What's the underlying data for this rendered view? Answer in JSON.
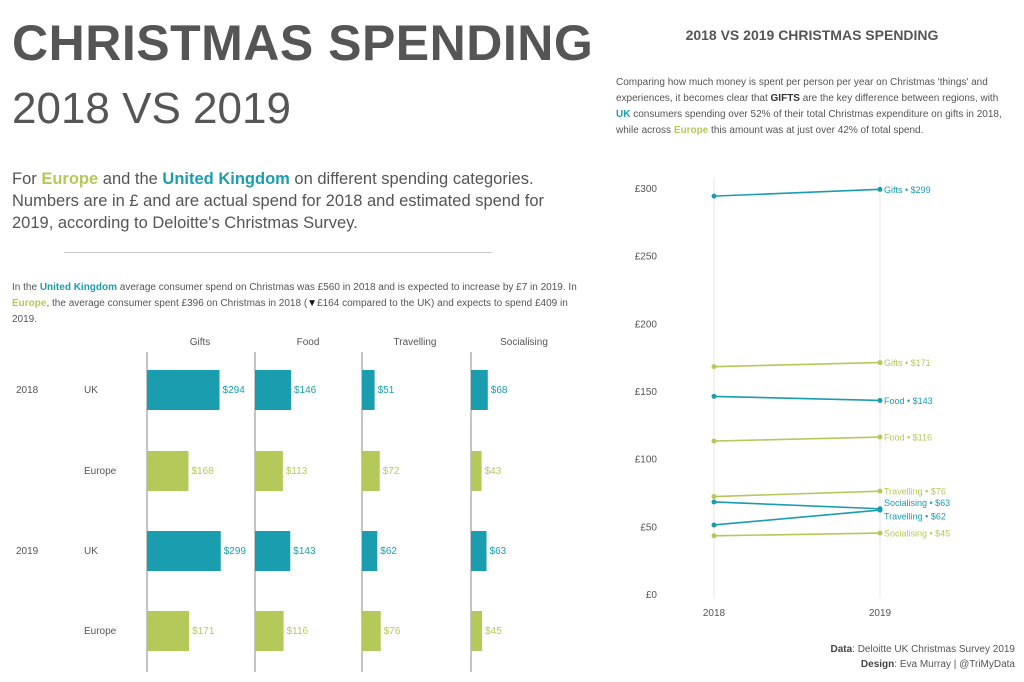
{
  "header": {
    "title_line1": "CHRISTMAS SPENDING",
    "title_line2": "2018 VS 2019"
  },
  "intro": {
    "part1": "For ",
    "europe": "Europe",
    "part2": " and the ",
    "uk": "United Kingdom",
    "part3": " on different spending categories. Numbers are in £ and are actual spend for 2018 and estimated spend for 2019, according to Deloitte's Christmas Survey."
  },
  "summary": {
    "part1": "In the ",
    "uk": "United Kingdom",
    "part2": " average consumer spend on Christmas was £560 in 2018 and is expected to increase by £7 in 2019. In ",
    "europe": "Europe",
    "part3": ", the average consumer spent £396 on Christmas in 2018 (",
    "arrow": "▼",
    "part4": "£164 compared to the UK) and expects to spend £409 in 2019."
  },
  "right_panel": {
    "title": "2018 VS 2019 CHRISTMAS SPENDING",
    "desc_part1": "Comparing how much money is spent per person per year on Christmas 'things' and experiences, it becomes clear that ",
    "gifts": "GIFTS",
    "desc_part2": " are the key difference between regions, with ",
    "uk": "UK",
    "desc_part3": " consumers spending over 52% of their total Christmas expenditure on gifts in 2018, while across ",
    "europe": "Europe",
    "desc_part4": " this amount was at just over 42% of total spend."
  },
  "credits": {
    "data_label": "Data",
    "data_value": ": Deloitte UK Christmas Survey 2019",
    "design_label": "Design",
    "design_value": ": Eva Murray | @TriMyData"
  },
  "colors": {
    "uk": "#1a9daf",
    "europe": "#b5c95a",
    "text": "#555555",
    "axis": "#888888"
  },
  "chart_data": [
    {
      "type": "bar",
      "categories": [
        "Gifts",
        "Food",
        "Travelling",
        "Socialising"
      ],
      "rows": [
        {
          "year": "2018",
          "region": "UK",
          "values": [
            294,
            146,
            51,
            68
          ],
          "labels": [
            "$294",
            "$146",
            "$51",
            "$68"
          ]
        },
        {
          "year": "",
          "region": "Europe",
          "values": [
            168,
            113,
            72,
            43
          ],
          "labels": [
            "$168",
            "$113",
            "$72",
            "$43"
          ]
        },
        {
          "year": "2019",
          "region": "UK",
          "values": [
            299,
            143,
            62,
            63
          ],
          "labels": [
            "$299",
            "$143",
            "$62",
            "$63"
          ]
        },
        {
          "year": "",
          "region": "Europe",
          "values": [
            171,
            116,
            76,
            45
          ],
          "labels": [
            "$171",
            "$116",
            "$76",
            "$45"
          ]
        }
      ]
    },
    {
      "type": "line",
      "x": [
        "2018",
        "2019"
      ],
      "ylim": [
        0,
        300
      ],
      "yticks": [
        0,
        50,
        100,
        150,
        200,
        250,
        300
      ],
      "ytick_labels": [
        "£0",
        "£50",
        "£100",
        "£150",
        "£200",
        "£250",
        "£300"
      ],
      "series": [
        {
          "name": "Gifts",
          "region": "UK",
          "values": [
            294,
            299
          ],
          "end_label": "Gifts • $299"
        },
        {
          "name": "Gifts",
          "region": "Europe",
          "values": [
            168,
            171
          ],
          "end_label": "Gifts • $171"
        },
        {
          "name": "Food",
          "region": "UK",
          "values": [
            146,
            143
          ],
          "end_label": "Food • $143"
        },
        {
          "name": "Food",
          "region": "Europe",
          "values": [
            113,
            116
          ],
          "end_label": "Food • $116"
        },
        {
          "name": "Travelling",
          "region": "Europe",
          "values": [
            72,
            76
          ],
          "end_label": "Travelling • $76"
        },
        {
          "name": "Socialising",
          "region": "UK",
          "values": [
            68,
            63
          ],
          "end_label": "Socialising • $63"
        },
        {
          "name": "Travelling",
          "region": "UK",
          "values": [
            51,
            62
          ],
          "end_label": "Travelling • $62"
        },
        {
          "name": "Socialising",
          "region": "Europe",
          "values": [
            43,
            45
          ],
          "end_label": "Socialising • $45"
        }
      ]
    }
  ]
}
